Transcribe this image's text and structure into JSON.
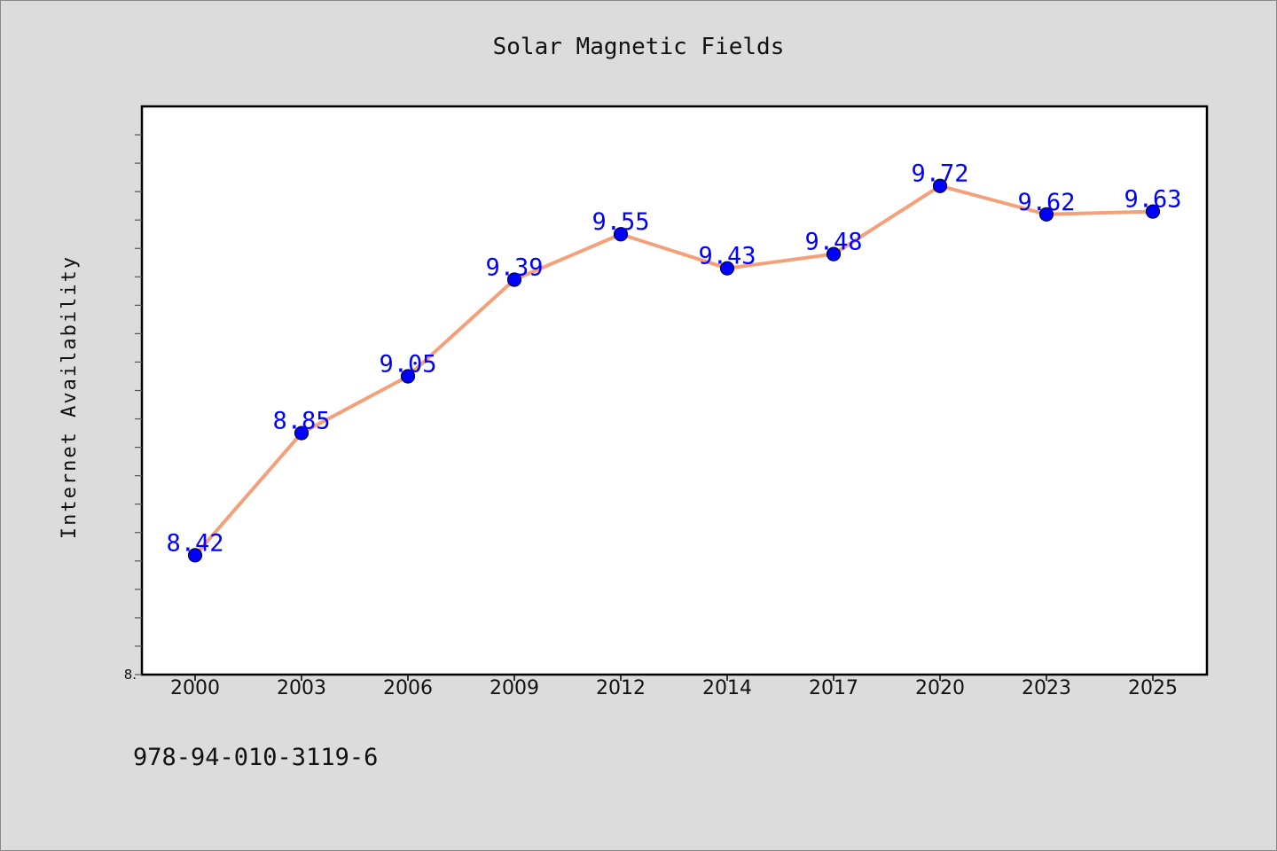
{
  "chart_data": {
    "type": "line",
    "title": "Solar Magnetic Fields",
    "xlabel": "",
    "ylabel": "Internet Availability",
    "categories": [
      "2000",
      "2003",
      "2006",
      "2009",
      "2012",
      "2014",
      "2017",
      "2020",
      "2023",
      "2025"
    ],
    "series": [
      {
        "values": [
          8.42,
          8.85,
          9.05,
          9.39,
          9.55,
          9.43,
          9.48,
          9.72,
          9.62,
          9.63
        ]
      }
    ],
    "data_labels": [
      "8.42",
      "8.85",
      "9.05",
      "9.39",
      "9.55",
      "9.43",
      "9.48",
      "9.72",
      "9.62",
      "9.63"
    ],
    "ylim": [
      8.0,
      10.0
    ],
    "y_tick_label": "8.",
    "grid": false,
    "legend": "none",
    "colors": {
      "line": "#f4a07a",
      "marker": "#0000ff",
      "label": "#0000ff",
      "background": "#dcdcdc",
      "plot": "#ffffff"
    }
  },
  "footnote": "978-94-010-3119-6"
}
